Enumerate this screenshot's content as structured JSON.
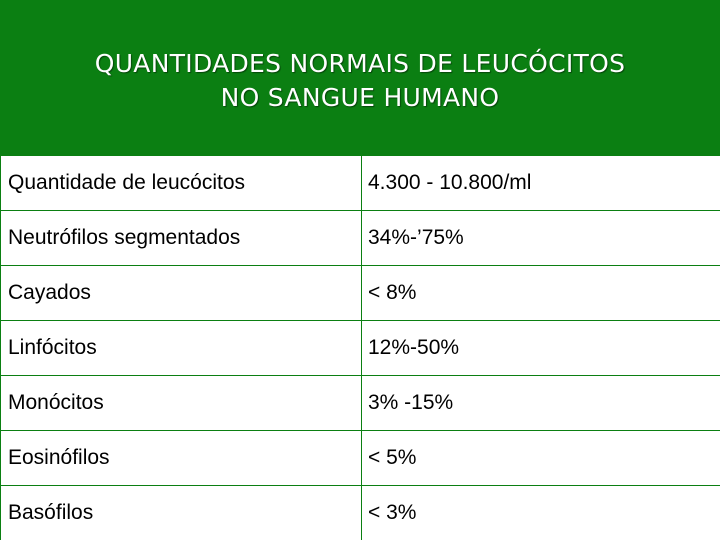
{
  "title": {
    "line1": "QUANTIDADES NORMAIS DE LEUCÓCITOS",
    "line2": "NO SANGUE HUMANO"
  },
  "colors": {
    "header_bg": "#0b7f12",
    "title_text": "#ffffff",
    "grid_lines": "#0b7f12"
  },
  "rows": [
    {
      "label": "Quantidade  de leucócitos",
      "value": "4.300 - 10.800/ml"
    },
    {
      "label": "Neutrófilos segmentados",
      "value": "34%-’75%"
    },
    {
      "label": "Cayados",
      "value": "< 8%"
    },
    {
      "label": "Linfócitos",
      "value": "12%-50%"
    },
    {
      "label": "Monócitos",
      "value": "3% -15%"
    },
    {
      "label": "Eosinófilos",
      "value": "< 5%"
    },
    {
      "label": "Basófilos",
      "value": "< 3%"
    }
  ]
}
